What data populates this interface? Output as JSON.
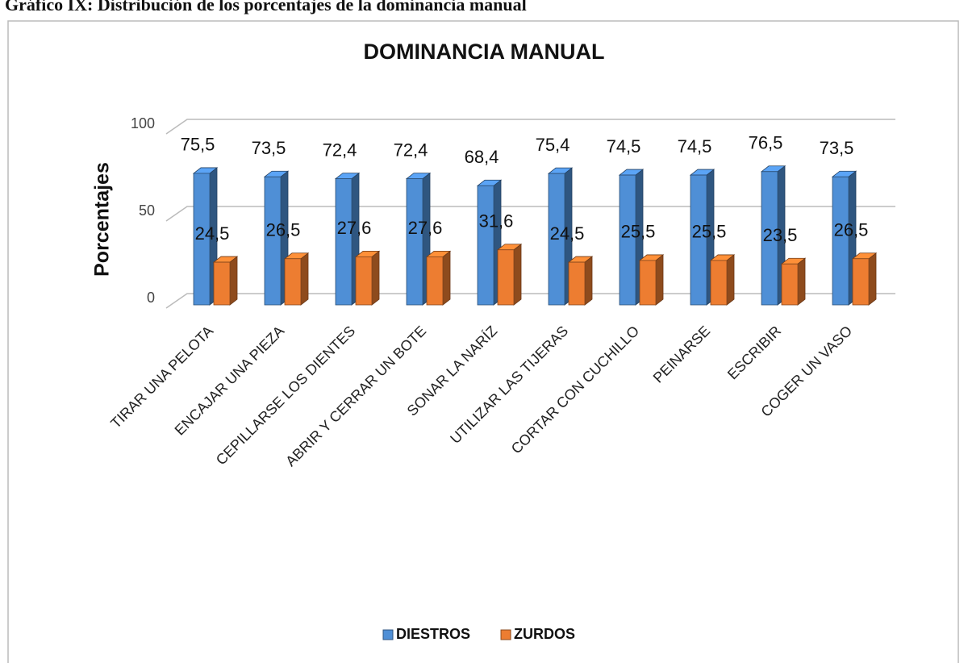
{
  "caption": "Gráfico IX: Distribución de los porcentajes de la dominancia manual",
  "chart_data": {
    "type": "bar3d",
    "title": "DOMINANCIA MANUAL",
    "y_label": "Porcentajes",
    "categories": [
      "TIRAR UNA PELOTA",
      "ENCAJAR UNA PIEZA",
      "CEPILLARSE LOS DIENTES",
      "ABRIR Y CERRAR UN BOTE",
      "SONAR LA NARÍZ",
      "UTILIZAR LAS TIJERAS",
      "CORTAR CON CUCHILLO",
      "PEINARSE",
      "ESCRIBIR",
      "COGER UN VASO"
    ],
    "series": [
      {
        "name": "DIESTROS",
        "color": "#4f8fd6",
        "values": [
          75.5,
          73.5,
          72.4,
          72.4,
          68.4,
          75.4,
          74.5,
          74.5,
          76.5,
          73.5
        ],
        "value_labels": [
          "75,5",
          "73,5",
          "72,4",
          "72,4",
          "68,4",
          "75,4",
          "74,5",
          "74,5",
          "76,5",
          "73,5"
        ]
      },
      {
        "name": "ZURDOS",
        "color": "#ed7d31",
        "values": [
          24.5,
          26.5,
          27.6,
          27.6,
          31.6,
          24.5,
          25.5,
          25.5,
          23.5,
          26.5
        ],
        "value_labels": [
          "24,5",
          "26,5",
          "27,6",
          "27,6",
          "31,6",
          "24,5",
          "25,5",
          "25,5",
          "23,5",
          "26,5"
        ]
      }
    ],
    "ylim": [
      0,
      100
    ],
    "yticks": [
      0,
      50,
      100
    ],
    "grid": true,
    "legend": "bottom"
  }
}
